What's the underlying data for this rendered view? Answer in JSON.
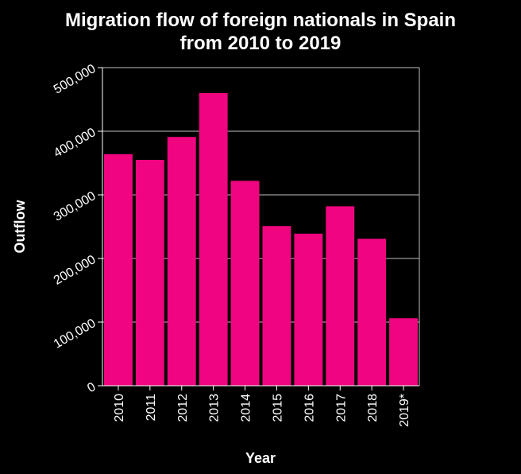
{
  "chart_data": {
    "type": "bar",
    "title": "Migration flow of foreign nationals in Spain from 2010 to 2019",
    "title_lines": [
      "Migration flow of foreign nationals in Spain",
      "from 2010 to 2019"
    ],
    "xlabel": "Year",
    "ylabel": "Outflow",
    "categories": [
      "2010",
      "2011",
      "2012",
      "2013",
      "2014",
      "2015",
      "2016",
      "2017",
      "2018",
      "2019*"
    ],
    "values": [
      364000,
      355000,
      391000,
      460000,
      322000,
      251000,
      239000,
      282000,
      231000,
      106000
    ],
    "ylim": [
      0,
      500000
    ],
    "yticks": [
      0,
      100000,
      200000,
      300000,
      400000,
      500000
    ],
    "ytick_labels": [
      "0",
      "100,000",
      "200,000",
      "300,000",
      "400,000",
      "500,000"
    ],
    "grid": true,
    "bar_color": "#f0047f",
    "background_color": "#000000",
    "grid_color": "#bfbfbf",
    "text_color": "#ffffff"
  }
}
